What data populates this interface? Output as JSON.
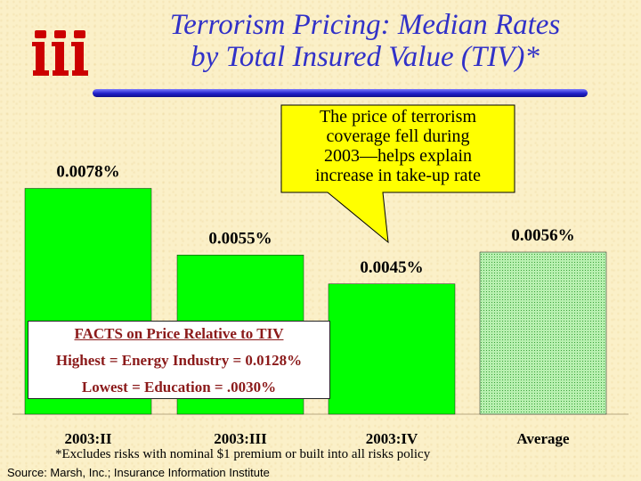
{
  "title": {
    "line1": "Terrorism Pricing:  Median Rates",
    "line2": "by Total Insured Value (TIV)*"
  },
  "logo": {
    "text": "iii",
    "color": "#cc0000"
  },
  "callout": {
    "line1": "The price of terrorism",
    "line2": "coverage fell during",
    "line3": "2003—helps explain",
    "line4": "increase in take-up rate",
    "fill": "#ffff00"
  },
  "facts": {
    "heading": "FACTS on Price Relative to TIV",
    "highest": "Highest = Energy Industry = 0.0128%",
    "lowest": "Lowest = Education = .0030%"
  },
  "footnote": "*Excludes risks with nominal $1 premium or built into all risks policy",
  "source": "Source:  Marsh, Inc.; Insurance Information Institute",
  "colors": {
    "bar": "#00ff00",
    "average_bar": "#8fdc8f",
    "title": "#3131c8",
    "facts_text": "#8b1a1a"
  },
  "chart_data": {
    "type": "bar",
    "title": "Terrorism Pricing:  Median Rates by Total Insured Value (TIV)*",
    "xlabel": "",
    "ylabel": "",
    "categories": [
      "2003:II",
      "2003:III",
      "2003:IV",
      "Average"
    ],
    "values": [
      0.0078,
      0.0055,
      0.0045,
      0.0056
    ],
    "data_labels": [
      "0.0078%",
      "0.0055%",
      "0.0045%",
      "0.0056%"
    ],
    "unit": "%",
    "ylim": [
      0,
      0.0088
    ],
    "grid": false
  }
}
